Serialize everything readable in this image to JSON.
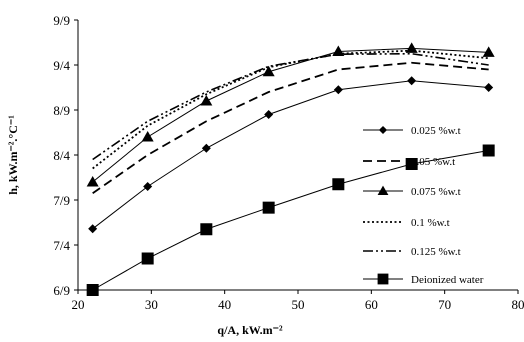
{
  "chart_data": {
    "type": "line",
    "xlabel": "q/A, kW.m⁻²",
    "ylabel": "h, kW.m⁻².°C⁻¹",
    "xlim": [
      20,
      80
    ],
    "xticks": [
      "20",
      "30",
      "40",
      "50",
      "60",
      "70",
      "80"
    ],
    "yticks": [
      "6/9",
      "7/4",
      "7/9",
      "8/4",
      "8/9",
      "9/4",
      "9/9"
    ],
    "ylim_note": "y tick labels printed as shown; values below are in tick-index units (0 = 6/9 ... 6 = 9/9)",
    "ylim": [
      0,
      6
    ],
    "x": [
      22,
      29.5,
      37.5,
      46,
      55.5,
      65.5,
      76
    ],
    "series": [
      {
        "name": "0.025 %w.t",
        "style": "solid-diamond",
        "values": [
          1.36,
          2.3,
          3.15,
          3.9,
          4.45,
          4.65,
          4.5
        ]
      },
      {
        "name": "0.05 %w.t",
        "style": "dashed",
        "values": [
          2.15,
          3.0,
          3.75,
          4.4,
          4.9,
          5.05,
          4.9
        ]
      },
      {
        "name": "0.075 %w.t",
        "style": "solid-triangle",
        "values": [
          2.4,
          3.4,
          4.2,
          4.85,
          5.3,
          5.37,
          5.28
        ]
      },
      {
        "name": "0.1 %w.t",
        "style": "dotted",
        "values": [
          2.7,
          3.65,
          4.35,
          4.95,
          5.25,
          5.32,
          5.15
        ]
      },
      {
        "name": "0.125 %w.t",
        "style": "dash-dot-dot",
        "values": [
          2.9,
          3.75,
          4.4,
          4.97,
          5.24,
          5.25,
          5.0
        ]
      },
      {
        "name": "Deionized water",
        "style": "solid-square",
        "values": [
          0,
          0.7,
          1.35,
          1.83,
          2.35,
          2.8,
          3.1
        ]
      }
    ],
    "grid": false,
    "legend_position": "right-inside"
  }
}
